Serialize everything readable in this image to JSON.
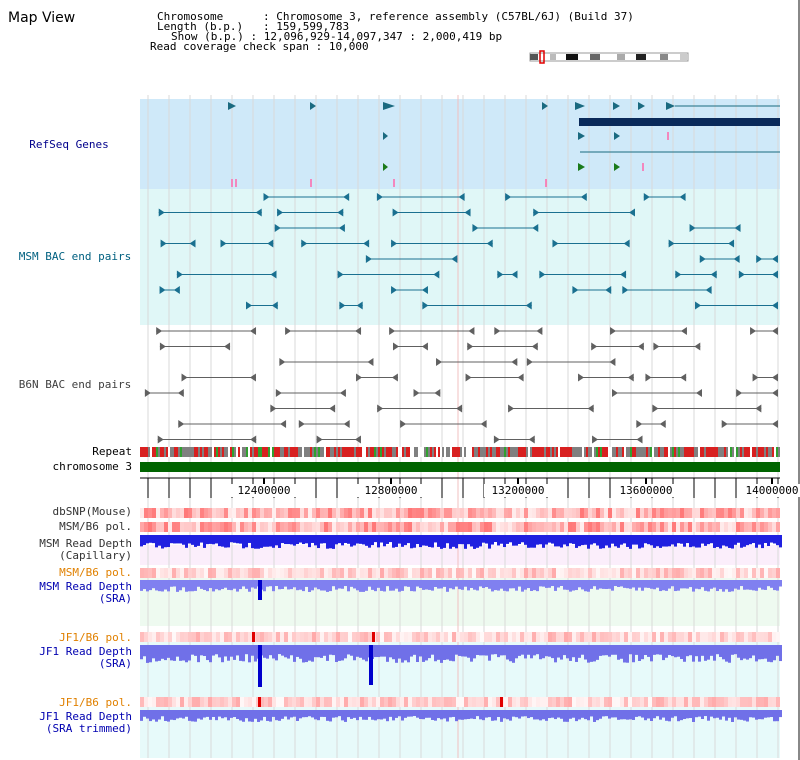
{
  "page": {
    "title": "Map View"
  },
  "header": {
    "chromosome_label": "Chromosome",
    "chromosome_value": "Chromosome 3, reference assembly (C57BL/6J) (Build 37)",
    "length_label": "Length (b.p.)",
    "length_value": "159,599,783",
    "show_label": "Show (b.p.)",
    "show_value": "12,096,929-14,097,347 : 2,000,419 bp",
    "coverage_label": "Read coverage check span",
    "coverage_value": "10,000"
  },
  "tracks": {
    "refseq": "RefSeq Genes",
    "msm_bac": "MSM BAC end pairs",
    "b6n_bac": "B6N BAC end pairs",
    "repeat": "Repeat",
    "chromosome": "chromosome 3",
    "dbsnp": "dbSNP(Mouse)",
    "msm_b6_pol_1": "MSM/B6 pol.",
    "msm_read_depth_cap_1": "MSM Read Depth",
    "msm_read_depth_cap_2": "(Capillary)",
    "msm_b6_pol_2": "MSM/B6 pol.",
    "msm_read_depth_sra_1": "MSM Read Depth",
    "msm_read_depth_sra_2": "(SRA)",
    "jf1_b6_pol_1": "JF1/B6 pol.",
    "jf1_read_depth_sra_1": "JF1 Read Depth",
    "jf1_read_depth_sra_2": "(SRA)",
    "jf1_b6_pol_2": "JF1/B6 pol.",
    "jf1_read_depth_trim_1": "JF1 Read Depth",
    "jf1_read_depth_trim_2": "(SRA trimmed)"
  },
  "axis": {
    "ticks": [
      "12400000",
      "12800000",
      "13200000",
      "13600000",
      "14000000"
    ]
  },
  "colors": {
    "refseq_label": "#00008b",
    "msm_label": "#006080",
    "b6n_label": "#404040",
    "pol_orange": "#e08000",
    "depth_blue": "#0000b0",
    "refseq_bg": "#cfe9f9",
    "bac_bg": "#e0f7f7",
    "chromosome_green": "#006400"
  }
}
